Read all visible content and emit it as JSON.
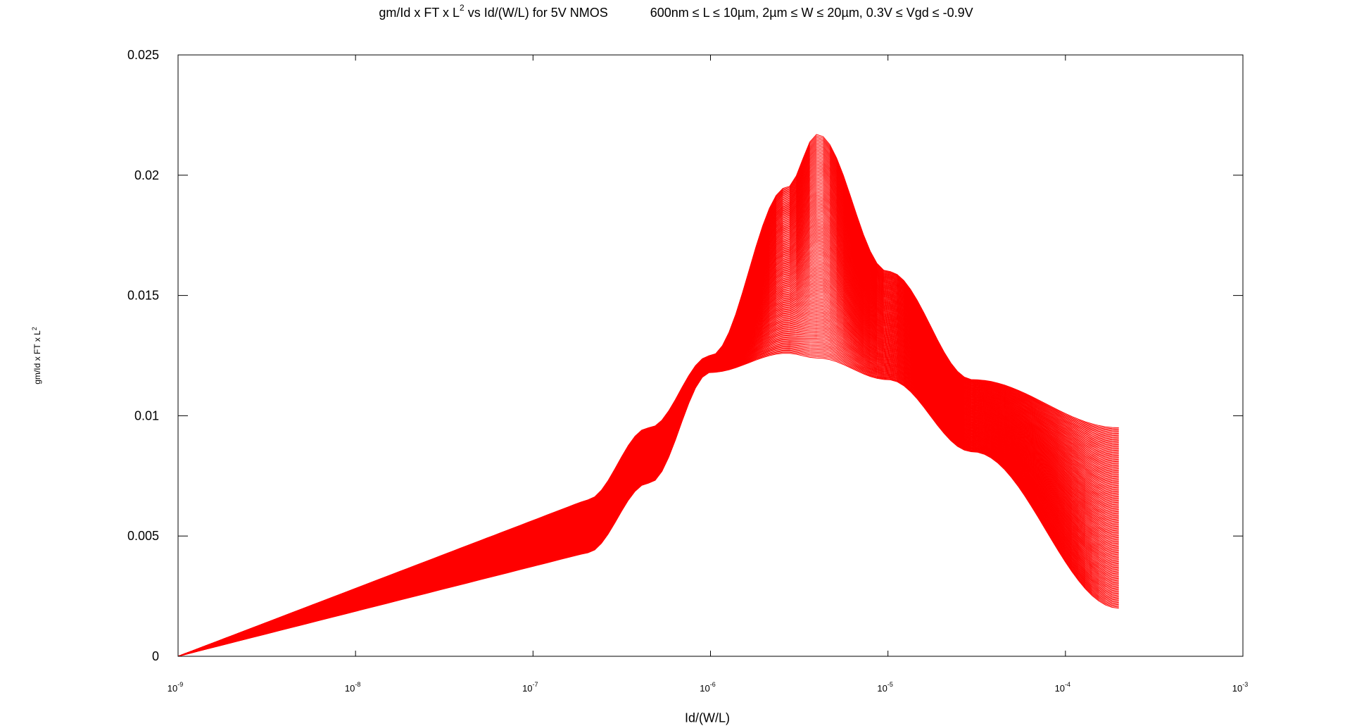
{
  "chart_data": {
    "type": "line",
    "title": {
      "prefix": "gm/Id x FT x L",
      "sup": "2",
      "middle": " vs Id/(W/L) for 5V NMOS",
      "ranges": "600nm ≤ L ≤ 10µm, 2µm ≤ W ≤ 20µm, 0.3V ≤ Vgd ≤ -0.9V"
    },
    "xlabel": "Id/(W/L)",
    "ylabel": {
      "prefix": "gm/Id x FT x L",
      "sup": "2"
    },
    "x_scale": "log",
    "xlim": [
      1e-09,
      0.001
    ],
    "ylim": [
      0,
      0.025
    ],
    "x_ticks": [
      {
        "base": "10",
        "exp": "-9",
        "value": 1e-09
      },
      {
        "base": "10",
        "exp": "-8",
        "value": 1e-08
      },
      {
        "base": "10",
        "exp": "-7",
        "value": 1e-07
      },
      {
        "base": "10",
        "exp": "-6",
        "value": 1e-06
      },
      {
        "base": "10",
        "exp": "-5",
        "value": 1e-05
      },
      {
        "base": "10",
        "exp": "-4",
        "value": 0.0001
      },
      {
        "base": "10",
        "exp": "-3",
        "value": 0.001
      }
    ],
    "y_ticks": [
      {
        "label": "0",
        "value": 0
      },
      {
        "label": "0.005",
        "value": 0.005
      },
      {
        "label": "0.01",
        "value": 0.01
      },
      {
        "label": "0.015",
        "value": 0.015
      },
      {
        "label": "0.02",
        "value": 0.02
      },
      {
        "label": "0.025",
        "value": 0.025
      }
    ],
    "grid": false,
    "line_color": "#ff0000",
    "curve_count": 160,
    "envelope": {
      "x": [
        1e-09,
        2e-07,
        4.5e-07,
        1e-06,
        2.7e-06,
        4e-06,
        1e-05,
        3e-05,
        0.0002
      ],
      "y_upper": [
        0,
        0.0065,
        0.0095,
        0.0125,
        0.0195,
        0.0217,
        0.016,
        0.0115,
        0.0095
      ],
      "y_lower": [
        0,
        0.0043,
        0.0072,
        0.0118,
        0.0126,
        0.0124,
        0.0115,
        0.0085,
        0.002
      ]
    }
  }
}
